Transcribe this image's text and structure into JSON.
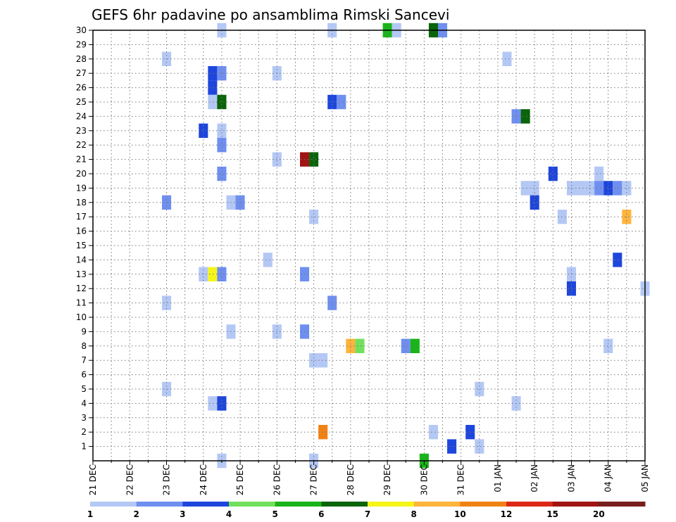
{
  "chart_data": {
    "type": "heatmap",
    "title": "GEFS 6hr padavine po ansamblima Rimski Sancevi",
    "y_ticks": [
      "1",
      "2",
      "3",
      "4",
      "5",
      "6",
      "7",
      "8",
      "9",
      "10",
      "11",
      "12",
      "13",
      "14",
      "15",
      "16",
      "17",
      "18",
      "19",
      "20",
      "21",
      "22",
      "23",
      "24",
      "25",
      "26",
      "27",
      "28",
      "29",
      "30"
    ],
    "y_range": [
      0,
      30
    ],
    "x_ticks": [
      "21 DEC",
      "22 DEC",
      "23 DEC",
      "24 DEC",
      "25 DEC",
      "26 DEC",
      "27 DEC",
      "28 DEC",
      "29 DEC",
      "30 DEC",
      "31 DEC",
      "01 JAN",
      "02 JAN",
      "03 JAN",
      "04 JAN",
      "05 JAN"
    ],
    "x_step_hours": 6,
    "x_range_steps": [
      0,
      60
    ],
    "grid": "dotted",
    "legend": {
      "placement": "bottom",
      "labels": [
        "1",
        "2",
        "3",
        "4",
        "5",
        "6",
        "7",
        "8",
        "10",
        "12",
        "15",
        "20"
      ],
      "colors": [
        "#b4c8f5",
        "#6f8ff0",
        "#1e46dc",
        "#72e05c",
        "#19b419",
        "#0a640a",
        "#f5f519",
        "#ffb43c",
        "#f08214",
        "#dc2814",
        "#a01414",
        "#781e1e"
      ]
    },
    "cells": [
      {
        "x": 14,
        "y": 30,
        "c": 0
      },
      {
        "x": 26,
        "y": 30,
        "c": 0
      },
      {
        "x": 32,
        "y": 30,
        "c": 4
      },
      {
        "x": 33,
        "y": 30,
        "c": 0
      },
      {
        "x": 37,
        "y": 30,
        "c": 5
      },
      {
        "x": 38,
        "y": 30,
        "c": 1
      },
      {
        "x": 8,
        "y": 28,
        "c": 0
      },
      {
        "x": 45,
        "y": 28,
        "c": 0
      },
      {
        "x": 13,
        "y": 27,
        "c": 2
      },
      {
        "x": 14,
        "y": 27,
        "c": 1
      },
      {
        "x": 20,
        "y": 27,
        "c": 0
      },
      {
        "x": 13,
        "y": 26,
        "c": 2
      },
      {
        "x": 13,
        "y": 25,
        "c": 0
      },
      {
        "x": 14,
        "y": 25,
        "c": 5
      },
      {
        "x": 26,
        "y": 25,
        "c": 2
      },
      {
        "x": 27,
        "y": 25,
        "c": 1
      },
      {
        "x": 46,
        "y": 24,
        "c": 1
      },
      {
        "x": 47,
        "y": 24,
        "c": 5
      },
      {
        "x": 12,
        "y": 23,
        "c": 2
      },
      {
        "x": 14,
        "y": 23,
        "c": 0
      },
      {
        "x": 14,
        "y": 22,
        "c": 1
      },
      {
        "x": 20,
        "y": 21,
        "c": 0
      },
      {
        "x": 23,
        "y": 21,
        "c": 10
      },
      {
        "x": 24,
        "y": 21,
        "c": 5
      },
      {
        "x": 14,
        "y": 20,
        "c": 1
      },
      {
        "x": 50,
        "y": 20,
        "c": 2
      },
      {
        "x": 55,
        "y": 20,
        "c": 0
      },
      {
        "x": 47,
        "y": 19,
        "c": 0
      },
      {
        "x": 48,
        "y": 19,
        "c": 0
      },
      {
        "x": 52,
        "y": 19,
        "c": 0
      },
      {
        "x": 53,
        "y": 19,
        "c": 0
      },
      {
        "x": 54,
        "y": 19,
        "c": 0
      },
      {
        "x": 55,
        "y": 19,
        "c": 1
      },
      {
        "x": 56,
        "y": 19,
        "c": 2
      },
      {
        "x": 57,
        "y": 19,
        "c": 1
      },
      {
        "x": 58,
        "y": 19,
        "c": 0
      },
      {
        "x": 8,
        "y": 18,
        "c": 1
      },
      {
        "x": 15,
        "y": 18,
        "c": 0
      },
      {
        "x": 16,
        "y": 18,
        "c": 1
      },
      {
        "x": 48,
        "y": 18,
        "c": 2
      },
      {
        "x": 24,
        "y": 17,
        "c": 0
      },
      {
        "x": 51,
        "y": 17,
        "c": 0
      },
      {
        "x": 58,
        "y": 17,
        "c": 7
      },
      {
        "x": 19,
        "y": 14,
        "c": 0
      },
      {
        "x": 57,
        "y": 14,
        "c": 2
      },
      {
        "x": 12,
        "y": 13,
        "c": 0
      },
      {
        "x": 13,
        "y": 13,
        "c": 6
      },
      {
        "x": 14,
        "y": 13,
        "c": 1
      },
      {
        "x": 23,
        "y": 13,
        "c": 1
      },
      {
        "x": 52,
        "y": 13,
        "c": 0
      },
      {
        "x": 52,
        "y": 12,
        "c": 2
      },
      {
        "x": 60,
        "y": 12,
        "c": 0
      },
      {
        "x": 8,
        "y": 11,
        "c": 0
      },
      {
        "x": 26,
        "y": 11,
        "c": 1
      },
      {
        "x": 15,
        "y": 9,
        "c": 0
      },
      {
        "x": 20,
        "y": 9,
        "c": 0
      },
      {
        "x": 23,
        "y": 9,
        "c": 1
      },
      {
        "x": 28,
        "y": 8,
        "c": 7
      },
      {
        "x": 29,
        "y": 8,
        "c": 3
      },
      {
        "x": 34,
        "y": 8,
        "c": 1
      },
      {
        "x": 35,
        "y": 8,
        "c": 4
      },
      {
        "x": 56,
        "y": 8,
        "c": 0
      },
      {
        "x": 24,
        "y": 7,
        "c": 0
      },
      {
        "x": 25,
        "y": 7,
        "c": 0
      },
      {
        "x": 8,
        "y": 5,
        "c": 0
      },
      {
        "x": 42,
        "y": 5,
        "c": 0
      },
      {
        "x": 13,
        "y": 4,
        "c": 0
      },
      {
        "x": 14,
        "y": 4,
        "c": 2
      },
      {
        "x": 46,
        "y": 4,
        "c": 0
      },
      {
        "x": 25,
        "y": 2,
        "c": 8
      },
      {
        "x": 37,
        "y": 2,
        "c": 0
      },
      {
        "x": 41,
        "y": 2,
        "c": 2
      },
      {
        "x": 39,
        "y": 1,
        "c": 2
      },
      {
        "x": 42,
        "y": 1,
        "c": 0
      },
      {
        "x": 14,
        "y": 0,
        "c": 0
      },
      {
        "x": 24,
        "y": 0,
        "c": 0
      },
      {
        "x": 36,
        "y": 0,
        "c": 4
      }
    ]
  }
}
